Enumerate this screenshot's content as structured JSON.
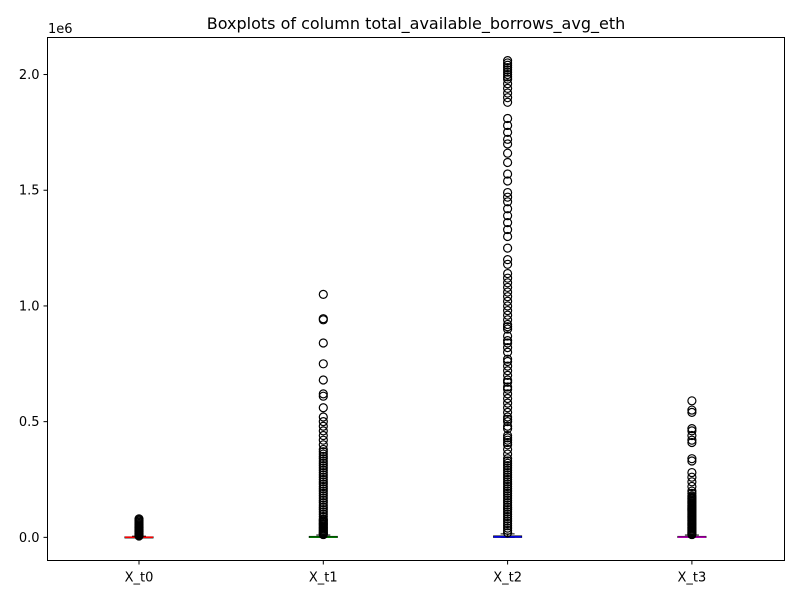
{
  "chart_data": {
    "type": "boxplot",
    "title": "Boxplots of column total_available_borrows_avg_eth",
    "xlabel": "",
    "ylabel": "",
    "y_offset_label": "1e6",
    "y_scale_multiplier": 1000000,
    "ylim": [
      -100000,
      2160000
    ],
    "yticks": [
      0,
      500000,
      1000000,
      1500000,
      2000000
    ],
    "ytick_labels": [
      "0.0",
      "0.5",
      "1.0",
      "1.5",
      "2.0"
    ],
    "categories": [
      "X_t0",
      "X_t1",
      "X_t2",
      "X_t3"
    ],
    "grid": false,
    "series": [
      {
        "category": "X_t0",
        "median_color": "#ff0000",
        "q1": 0,
        "median": 500,
        "q3": 2000,
        "whisker_low": 0,
        "whisker_high": 5000,
        "outliers": [
          6000,
          9000,
          12000,
          15000,
          18000,
          21000,
          24000,
          27000,
          30000,
          33000,
          36000,
          39000,
          42000,
          45000,
          48000,
          51000,
          55000,
          60000,
          65000,
          70000,
          75000,
          80000
        ]
      },
      {
        "category": "X_t1",
        "median_color": "#008000",
        "q1": 0,
        "median": 1000,
        "q3": 4000,
        "whisker_low": 0,
        "whisker_high": 10000,
        "outliers": [
          12000,
          16000,
          20000,
          25000,
          30000,
          35000,
          40000,
          45000,
          50000,
          55000,
          60000,
          65000,
          70000,
          75000,
          80000,
          90000,
          100000,
          110000,
          120000,
          130000,
          140000,
          150000,
          160000,
          170000,
          180000,
          190000,
          200000,
          210000,
          220000,
          230000,
          240000,
          250000,
          260000,
          270000,
          280000,
          290000,
          300000,
          310000,
          320000,
          330000,
          340000,
          350000,
          360000,
          370000,
          380000,
          400000,
          420000,
          440000,
          460000,
          480000,
          500000,
          520000,
          560000,
          610000,
          620000,
          680000,
          750000,
          840000,
          940000,
          945000,
          1050000
        ]
      },
      {
        "category": "X_t2",
        "median_color": "#0000ff",
        "q1": 0,
        "median": 2000,
        "q3": 6000,
        "whisker_low": 0,
        "whisker_high": 15000,
        "outliers": [
          20000,
          30000,
          40000,
          50000,
          60000,
          70000,
          80000,
          90000,
          100000,
          110000,
          120000,
          130000,
          140000,
          150000,
          160000,
          170000,
          180000,
          190000,
          200000,
          210000,
          220000,
          230000,
          240000,
          250000,
          260000,
          270000,
          280000,
          290000,
          300000,
          310000,
          320000,
          330000,
          340000,
          360000,
          380000,
          400000,
          410000,
          420000,
          430000,
          440000,
          470000,
          480000,
          500000,
          510000,
          520000,
          540000,
          560000,
          580000,
          600000,
          620000,
          640000,
          650000,
          670000,
          680000,
          700000,
          720000,
          740000,
          760000,
          770000,
          800000,
          820000,
          840000,
          850000,
          870000,
          900000,
          910000,
          920000,
          940000,
          960000,
          980000,
          1000000,
          1020000,
          1040000,
          1060000,
          1080000,
          1100000,
          1120000,
          1140000,
          1180000,
          1200000,
          1250000,
          1300000,
          1330000,
          1360000,
          1390000,
          1420000,
          1450000,
          1470000,
          1490000,
          1540000,
          1570000,
          1620000,
          1660000,
          1700000,
          1720000,
          1750000,
          1780000,
          1810000,
          1880000,
          1900000,
          1920000,
          1940000,
          1960000,
          1980000,
          1990000,
          2000000,
          2010000,
          2020000,
          2030000,
          2040000,
          2050000,
          2060000
        ]
      },
      {
        "category": "X_t3",
        "median_color": "#bf00bf",
        "q1": 0,
        "median": 1000,
        "q3": 4000,
        "whisker_low": 0,
        "whisker_high": 10000,
        "outliers": [
          12000,
          16000,
          20000,
          25000,
          30000,
          35000,
          40000,
          45000,
          50000,
          55000,
          60000,
          65000,
          70000,
          75000,
          80000,
          85000,
          90000,
          95000,
          100000,
          105000,
          110000,
          115000,
          120000,
          125000,
          130000,
          135000,
          140000,
          145000,
          150000,
          155000,
          160000,
          165000,
          170000,
          175000,
          180000,
          190000,
          200000,
          220000,
          240000,
          260000,
          280000,
          330000,
          340000,
          410000,
          420000,
          440000,
          460000,
          470000,
          540000,
          550000,
          590000
        ]
      }
    ]
  }
}
